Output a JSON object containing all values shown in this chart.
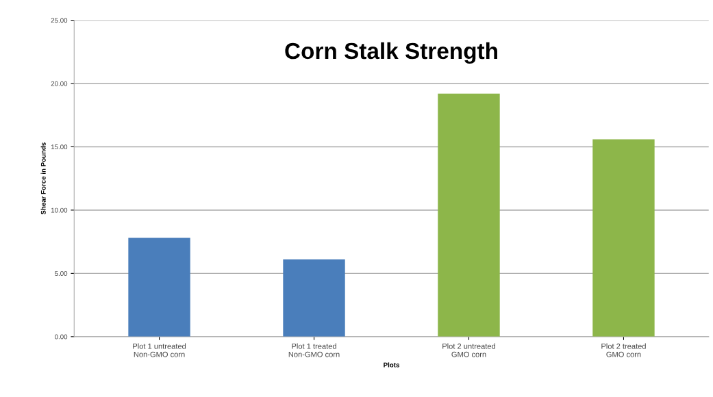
{
  "chart_data": {
    "type": "bar",
    "title": "Corn Stalk Strength",
    "xlabel": "Plots",
    "ylabel": "Shear Force in Pounds",
    "categories": [
      "Plot 1 untreated\nNon-GMO corn",
      "Plot 1 treated\nNon-GMO corn",
      "Plot 2 untreated\nGMO corn",
      "Plot 2 treated\nGMO corn"
    ],
    "values": [
      7.8,
      6.1,
      19.2,
      15.6
    ],
    "colors": [
      "#4a7ebb",
      "#4a7ebb",
      "#8db64a",
      "#8db64a"
    ],
    "ylim": [
      0,
      25
    ],
    "yticks": [
      {
        "value": 0,
        "label": "0.00"
      },
      {
        "value": 5,
        "label": "5.00"
      },
      {
        "value": 10,
        "label": "10.00"
      },
      {
        "value": 15,
        "label": "15.00"
      },
      {
        "value": 20,
        "label": "20.00"
      },
      {
        "value": 25,
        "label": "25.00"
      }
    ],
    "grid": "y",
    "legend": false
  }
}
